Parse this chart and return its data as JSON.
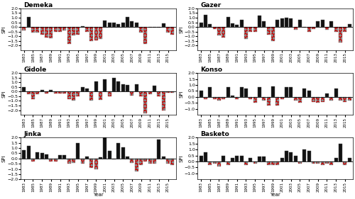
{
  "years": [
    1983,
    1984,
    1985,
    1986,
    1987,
    1988,
    1989,
    1990,
    1991,
    1992,
    1993,
    1994,
    1995,
    1996,
    1997,
    1998,
    1999,
    2000,
    2001,
    2002,
    2003,
    2004,
    2005,
    2006,
    2007,
    2008,
    2009,
    2010,
    2011,
    2012,
    2013,
    2014,
    2015,
    2016
  ],
  "stations": {
    "Demeka": [
      -0.4,
      1.1,
      -0.6,
      -0.6,
      -0.8,
      -1.1,
      -1.2,
      -0.5,
      -0.5,
      -0.4,
      -1.8,
      -0.9,
      -0.8,
      0.1,
      -0.5,
      -1.5,
      -1.4,
      -1.3,
      0.7,
      0.5,
      0.5,
      0.3,
      0.5,
      1.1,
      0.6,
      0.5,
      -0.6,
      -1.8,
      -0.1,
      -0.1,
      -0.1,
      0.4,
      -0.6,
      -0.8
    ],
    "Gazer": [
      0.5,
      1.3,
      0.3,
      -0.2,
      -0.9,
      -1.1,
      1.1,
      0.4,
      0.2,
      0.8,
      -1.3,
      -0.5,
      -0.5,
      1.2,
      0.6,
      -0.8,
      -1.5,
      0.8,
      0.9,
      1.0,
      0.9,
      -0.3,
      0.8,
      -0.1,
      -0.5,
      -0.2,
      0.6,
      0.8,
      -0.3,
      0.6,
      -0.5,
      -1.7,
      -0.5,
      0.3
    ],
    "Gidole": [
      0.5,
      -0.3,
      -0.8,
      -0.3,
      0.2,
      -0.2,
      0.2,
      -0.2,
      -0.2,
      -0.2,
      -0.8,
      -1.0,
      -0.5,
      0.5,
      0.3,
      -1.0,
      1.1,
      -0.9,
      1.3,
      -0.5,
      1.5,
      1.1,
      0.8,
      0.7,
      -0.4,
      0.8,
      -0.5,
      -2.3,
      -0.3,
      0.6,
      -0.5,
      -2.0,
      -0.1,
      -0.1
    ],
    "Konso": [
      0.5,
      -0.2,
      0.8,
      -0.2,
      -0.3,
      -0.2,
      0.8,
      0.1,
      -0.2,
      0.8,
      0.7,
      -0.2,
      -0.5,
      0.8,
      -0.3,
      -0.7,
      0.9,
      -0.7,
      -0.2,
      0.8,
      0.8,
      -0.3,
      -0.5,
      0.7,
      0.5,
      -0.4,
      -0.5,
      -0.4,
      0.3,
      -0.3,
      0.7,
      -0.3,
      -0.4,
      -0.3
    ],
    "Jinka": [
      0.8,
      1.2,
      -0.3,
      0.6,
      0.5,
      0.4,
      -0.3,
      -0.3,
      0.3,
      0.3,
      -0.5,
      -0.4,
      1.5,
      -0.5,
      0.2,
      -0.9,
      -1.0,
      0.1,
      2.0,
      0.7,
      -0.1,
      1.5,
      1.1,
      0.2,
      -0.4,
      -1.2,
      -0.6,
      -0.3,
      -0.5,
      -0.5,
      1.8,
      0.2,
      -0.5,
      -0.6
    ],
    "Basketo": [
      0.5,
      0.8,
      -0.3,
      -0.2,
      -0.4,
      0.5,
      -0.3,
      0.3,
      0.5,
      0.5,
      -0.3,
      0.3,
      -0.2,
      0.4,
      0.4,
      -0.3,
      -0.3,
      -0.3,
      0.3,
      0.9,
      0.8,
      0.5,
      -0.2,
      1.0,
      0.9,
      -0.2,
      -0.2,
      -0.3,
      -0.2,
      -0.3,
      0.3,
      1.5,
      -0.3,
      0.3
    ]
  },
  "layout": [
    "Demeka",
    "Gazer",
    "Gidole",
    "Konso",
    "Jinka",
    "Basketo"
  ],
  "ylims": {
    "Demeka": [
      -2.5,
      2.0
    ],
    "Gazer": [
      -2.5,
      2.0
    ],
    "Gidole": [
      -2.5,
      2.0
    ],
    "Konso": [
      -1.5,
      2.0
    ],
    "Jinka": [
      -2.0,
      2.0
    ],
    "Basketo": [
      -1.5,
      2.0
    ]
  },
  "yticks": {
    "Demeka": [
      -2.0,
      -1.5,
      -1.0,
      -0.5,
      0.0,
      0.5,
      1.0,
      1.5,
      2.0
    ],
    "Gazer": [
      -2.0,
      -1.5,
      -1.0,
      -0.5,
      0.0,
      0.5,
      1.0,
      1.5,
      2.0
    ],
    "Gidole": [
      -2.0,
      -1.5,
      -1.0,
      -0.5,
      0.0,
      0.5,
      1.0,
      1.5,
      2.0
    ],
    "Konso": [
      -1.0,
      -0.5,
      0.0,
      0.5,
      1.0,
      1.5,
      2.0
    ],
    "Jinka": [
      -2.0,
      -1.5,
      -1.0,
      -0.5,
      0.0,
      0.5,
      1.0,
      1.5,
      2.0
    ],
    "Basketo": [
      -1.0,
      -0.5,
      0.0,
      0.5,
      1.0,
      1.5,
      2.0
    ]
  },
  "positive_color": "#111111",
  "negative_color": "#cc0000",
  "title_fontsize": 6.5,
  "tick_fontsize": 4.5,
  "ylabel": "SPI",
  "xlabel": "Year",
  "bar_width": 0.75
}
